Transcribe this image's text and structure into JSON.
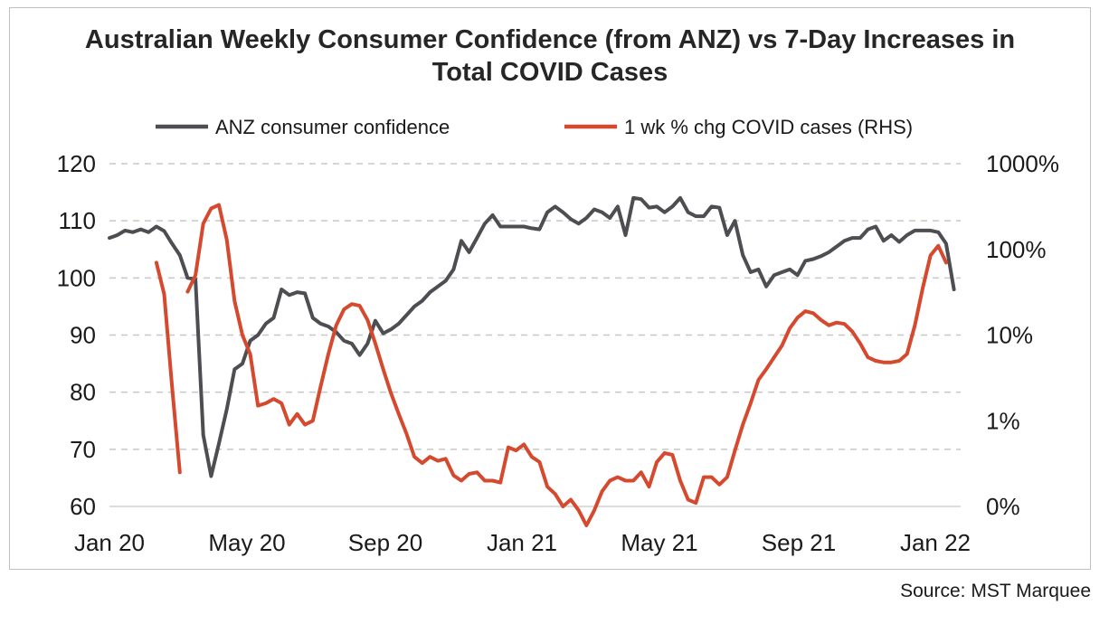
{
  "chart_data": {
    "type": "line",
    "title": "Australian Weekly Consumer Confidence (from ANZ) vs 7-Day Increases in\nTotal COVID Cases",
    "source": "Source: MST Marquee",
    "legend_position": "top",
    "grid": "horizontal dashed",
    "y_left": {
      "range": [
        60,
        120
      ],
      "ticks": [
        "60",
        "70",
        "80",
        "90",
        "100",
        "110",
        "120"
      ]
    },
    "y_right": {
      "scale": "log",
      "ticks": [
        "0%",
        "1%",
        "10%",
        "100%",
        "1000%"
      ]
    },
    "x_axis": {
      "type": "date",
      "ticks": [
        "Jan 20",
        "May 20",
        "Sep 20",
        "Jan 21",
        "May 21",
        "Sep 21",
        "Jan 22"
      ]
    },
    "colors": {
      "confidence": "#4d4d52",
      "covid": "#d5492f",
      "grid": "#c8c8c8"
    },
    "series": [
      {
        "name": "ANZ consumer confidence",
        "axis": "left",
        "points": [
          [
            "2020-01-01",
            107.0
          ],
          [
            "2020-01-08",
            107.5
          ],
          [
            "2020-01-15",
            108.3
          ],
          [
            "2020-01-22",
            108.0
          ],
          [
            "2020-01-29",
            108.5
          ],
          [
            "2020-02-05",
            108.0
          ],
          [
            "2020-02-12",
            109.0
          ],
          [
            "2020-02-19",
            108.2
          ],
          [
            "2020-02-26",
            106.0
          ],
          [
            "2020-03-04",
            104.0
          ],
          [
            "2020-03-11",
            100.0
          ],
          [
            "2020-03-18",
            99.8
          ],
          [
            "2020-03-25",
            72.5
          ],
          [
            "2020-04-01",
            65.3
          ],
          [
            "2020-04-08",
            71.0
          ],
          [
            "2020-04-15",
            77.0
          ],
          [
            "2020-04-22",
            84.0
          ],
          [
            "2020-04-29",
            85.0
          ],
          [
            "2020-05-06",
            89.0
          ],
          [
            "2020-05-13",
            90.0
          ],
          [
            "2020-05-20",
            92.0
          ],
          [
            "2020-05-27",
            93.0
          ],
          [
            "2020-06-03",
            98.0
          ],
          [
            "2020-06-10",
            97.0
          ],
          [
            "2020-06-17",
            97.5
          ],
          [
            "2020-06-24",
            97.3
          ],
          [
            "2020-07-01",
            93.0
          ],
          [
            "2020-07-08",
            92.0
          ],
          [
            "2020-07-15",
            91.5
          ],
          [
            "2020-07-22",
            90.5
          ],
          [
            "2020-07-29",
            89.0
          ],
          [
            "2020-08-05",
            88.5
          ],
          [
            "2020-08-12",
            86.5
          ],
          [
            "2020-08-19",
            88.5
          ],
          [
            "2020-08-26",
            92.5
          ],
          [
            "2020-09-02",
            90.3
          ],
          [
            "2020-09-09",
            91.0
          ],
          [
            "2020-09-16",
            92.0
          ],
          [
            "2020-09-23",
            93.5
          ],
          [
            "2020-09-30",
            95.0
          ],
          [
            "2020-10-07",
            96.0
          ],
          [
            "2020-10-14",
            97.5
          ],
          [
            "2020-10-21",
            98.5
          ],
          [
            "2020-10-28",
            99.5
          ],
          [
            "2020-11-04",
            101.5
          ],
          [
            "2020-11-11",
            106.5
          ],
          [
            "2020-11-18",
            104.5
          ],
          [
            "2020-11-25",
            107.0
          ],
          [
            "2020-12-02",
            109.5
          ],
          [
            "2020-12-09",
            111.0
          ],
          [
            "2020-12-16",
            109.0
          ],
          [
            "2020-12-23",
            109.0
          ],
          [
            "2020-12-30",
            109.0
          ],
          [
            "2021-01-06",
            109.0
          ],
          [
            "2021-01-13",
            108.7
          ],
          [
            "2021-01-20",
            108.5
          ],
          [
            "2021-01-27",
            111.5
          ],
          [
            "2021-02-03",
            112.5
          ],
          [
            "2021-02-10",
            111.5
          ],
          [
            "2021-02-17",
            110.3
          ],
          [
            "2021-02-24",
            109.5
          ],
          [
            "2021-03-03",
            110.5
          ],
          [
            "2021-03-10",
            112.0
          ],
          [
            "2021-03-17",
            111.5
          ],
          [
            "2021-03-24",
            110.5
          ],
          [
            "2021-03-31",
            112.5
          ],
          [
            "2021-04-07",
            107.5
          ],
          [
            "2021-04-14",
            114.0
          ],
          [
            "2021-04-21",
            113.8
          ],
          [
            "2021-04-28",
            112.3
          ],
          [
            "2021-05-05",
            112.5
          ],
          [
            "2021-05-12",
            111.5
          ],
          [
            "2021-05-19",
            112.5
          ],
          [
            "2021-05-26",
            114.0
          ],
          [
            "2021-06-02",
            111.5
          ],
          [
            "2021-06-09",
            110.8
          ],
          [
            "2021-06-16",
            110.8
          ],
          [
            "2021-06-23",
            112.5
          ],
          [
            "2021-06-30",
            112.3
          ],
          [
            "2021-07-07",
            107.5
          ],
          [
            "2021-07-14",
            110.0
          ],
          [
            "2021-07-21",
            104.0
          ],
          [
            "2021-07-28",
            101.0
          ],
          [
            "2021-08-04",
            101.5
          ],
          [
            "2021-08-11",
            98.5
          ],
          [
            "2021-08-18",
            100.5
          ],
          [
            "2021-08-25",
            101.0
          ],
          [
            "2021-09-01",
            101.5
          ],
          [
            "2021-09-08",
            100.5
          ],
          [
            "2021-09-15",
            103.0
          ],
          [
            "2021-09-22",
            103.3
          ],
          [
            "2021-09-29",
            103.8
          ],
          [
            "2021-10-06",
            104.5
          ],
          [
            "2021-10-13",
            105.5
          ],
          [
            "2021-10-20",
            106.5
          ],
          [
            "2021-10-27",
            107.0
          ],
          [
            "2021-11-03",
            107.0
          ],
          [
            "2021-11-10",
            108.5
          ],
          [
            "2021-11-17",
            109.0
          ],
          [
            "2021-11-24",
            106.5
          ],
          [
            "2021-12-01",
            107.5
          ],
          [
            "2021-12-08",
            106.3
          ],
          [
            "2021-12-15",
            107.5
          ],
          [
            "2021-12-22",
            108.3
          ],
          [
            "2021-12-29",
            108.3
          ],
          [
            "2022-01-05",
            108.3
          ],
          [
            "2022-01-12",
            108.0
          ],
          [
            "2022-01-19",
            106.0
          ],
          [
            "2022-01-26",
            98.0
          ]
        ]
      },
      {
        "name": "1 wk % chg COVID cases (RHS)",
        "axis": "right",
        "segments": [
          [
            [
              "2020-02-12",
              70
            ],
            [
              "2020-02-19",
              30
            ],
            [
              "2020-02-26",
              2.5
            ],
            [
              "2020-03-04",
              0.25
            ]
          ],
          [
            [
              "2020-03-11",
              32
            ],
            [
              "2020-03-18",
              50
            ],
            [
              "2020-03-25",
              200
            ],
            [
              "2020-04-01",
              300
            ],
            [
              "2020-04-08",
              330
            ],
            [
              "2020-04-15",
              130
            ],
            [
              "2020-04-22",
              25
            ],
            [
              "2020-04-29",
              10
            ],
            [
              "2020-05-06",
              6
            ],
            [
              "2020-05-13",
              1.5
            ],
            [
              "2020-05-20",
              1.6
            ],
            [
              "2020-05-27",
              1.8
            ],
            [
              "2020-06-03",
              1.6
            ],
            [
              "2020-06-10",
              0.9
            ],
            [
              "2020-06-17",
              1.2
            ],
            [
              "2020-06-24",
              0.9
            ],
            [
              "2020-07-01",
              1.0
            ],
            [
              "2020-07-08",
              2.5
            ],
            [
              "2020-07-15",
              6
            ],
            [
              "2020-07-22",
              13
            ],
            [
              "2020-07-29",
              20
            ],
            [
              "2020-08-05",
              23
            ],
            [
              "2020-08-12",
              22
            ],
            [
              "2020-08-19",
              15
            ],
            [
              "2020-08-26",
              8
            ],
            [
              "2020-09-02",
              4
            ],
            [
              "2020-09-09",
              2.1
            ],
            [
              "2020-09-16",
              1.2
            ],
            [
              "2020-09-23",
              0.7
            ],
            [
              "2020-09-30",
              0.38
            ],
            [
              "2020-10-07",
              0.32
            ],
            [
              "2020-10-14",
              0.38
            ],
            [
              "2020-10-21",
              0.34
            ],
            [
              "2020-10-28",
              0.36
            ],
            [
              "2020-11-04",
              0.23
            ],
            [
              "2020-11-11",
              0.2
            ],
            [
              "2020-11-18",
              0.24
            ],
            [
              "2020-11-25",
              0.25
            ],
            [
              "2020-12-02",
              0.2
            ],
            [
              "2020-12-09",
              0.2
            ],
            [
              "2020-12-16",
              0.19
            ],
            [
              "2020-12-23",
              0.49
            ],
            [
              "2020-12-30",
              0.45
            ],
            [
              "2021-01-06",
              0.53
            ],
            [
              "2021-01-13",
              0.38
            ],
            [
              "2021-01-20",
              0.33
            ],
            [
              "2021-01-27",
              0.17
            ],
            [
              "2021-02-03",
              0.14
            ],
            [
              "2021-02-10",
              0.1
            ],
            [
              "2021-02-17",
              0.12
            ],
            [
              "2021-02-24",
              0.09
            ],
            [
              "2021-03-03",
              0.06
            ],
            [
              "2021-03-10",
              0.09
            ],
            [
              "2021-03-17",
              0.15
            ],
            [
              "2021-03-24",
              0.2
            ],
            [
              "2021-03-31",
              0.22
            ],
            [
              "2021-04-07",
              0.2
            ],
            [
              "2021-04-14",
              0.2
            ],
            [
              "2021-04-21",
              0.25
            ],
            [
              "2021-04-28",
              0.17
            ],
            [
              "2021-05-05",
              0.33
            ],
            [
              "2021-05-12",
              0.42
            ],
            [
              "2021-05-19",
              0.4
            ],
            [
              "2021-05-26",
              0.2
            ],
            [
              "2021-06-02",
              0.12
            ],
            [
              "2021-06-09",
              0.11
            ],
            [
              "2021-06-16",
              0.22
            ],
            [
              "2021-06-23",
              0.22
            ],
            [
              "2021-06-30",
              0.18
            ],
            [
              "2021-07-07",
              0.22
            ],
            [
              "2021-07-14",
              0.45
            ],
            [
              "2021-07-21",
              0.9
            ],
            [
              "2021-07-28",
              1.6
            ],
            [
              "2021-08-04",
              3
            ],
            [
              "2021-08-11",
              4
            ],
            [
              "2021-08-18",
              5.5
            ],
            [
              "2021-08-25",
              7.5
            ],
            [
              "2021-09-01",
              12
            ],
            [
              "2021-09-08",
              16
            ],
            [
              "2021-09-15",
              19
            ],
            [
              "2021-09-22",
              18
            ],
            [
              "2021-09-29",
              15
            ],
            [
              "2021-10-06",
              13
            ],
            [
              "2021-10-13",
              14
            ],
            [
              "2021-10-20",
              13.5
            ],
            [
              "2021-10-27",
              11
            ],
            [
              "2021-11-03",
              8
            ],
            [
              "2021-11-10",
              5.5
            ],
            [
              "2021-11-17",
              5
            ],
            [
              "2021-11-24",
              4.8
            ],
            [
              "2021-12-01",
              4.8
            ],
            [
              "2021-12-08",
              5
            ],
            [
              "2021-12-15",
              6
            ],
            [
              "2021-12-22",
              13
            ],
            [
              "2021-12-29",
              35
            ],
            [
              "2022-01-05",
              85
            ],
            [
              "2022-01-12",
              110
            ],
            [
              "2022-01-19",
              70
            ]
          ]
        ]
      }
    ]
  }
}
